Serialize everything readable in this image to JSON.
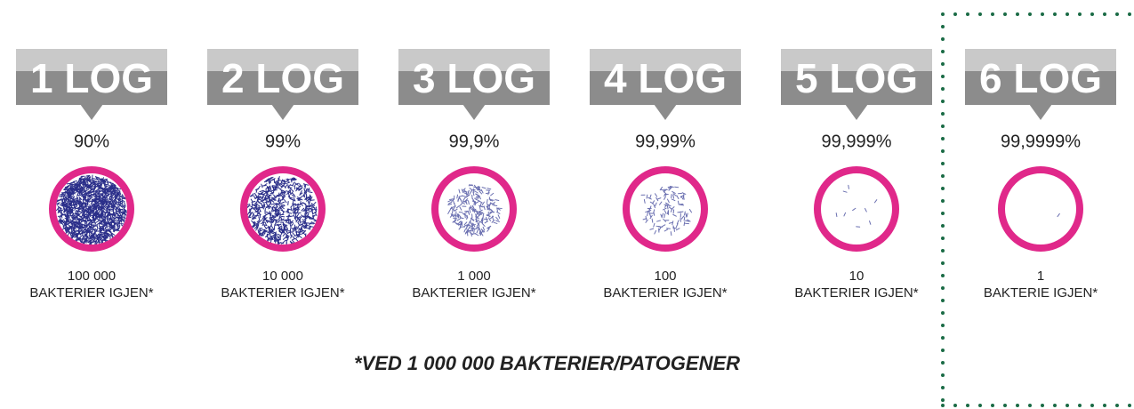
{
  "items": [
    {
      "label": "1 LOG",
      "percent": "90%",
      "count": "100 000",
      "unit": "BAKTERIER IGJEN*"
    },
    {
      "label": "2 LOG",
      "percent": "99%",
      "count": "10 000",
      "unit": "BAKTERIER IGJEN*"
    },
    {
      "label": "3 LOG",
      "percent": "99,9%",
      "count": "1 000",
      "unit": "BAKTERIER IGJEN*"
    },
    {
      "label": "4 LOG",
      "percent": "99,99%",
      "count": "100",
      "unit": "BAKTERIER IGJEN*"
    },
    {
      "label": "5 LOG",
      "percent": "99,999%",
      "count": "10",
      "unit": "BAKTERIER IGJEN*"
    },
    {
      "label": "6 LOG",
      "percent": "99,9999%",
      "count": "1",
      "unit": "BAKTERIE IGJEN*"
    }
  ],
  "footnote": "*VED 1 000 000 BAKTERIER/PATOGENER"
}
